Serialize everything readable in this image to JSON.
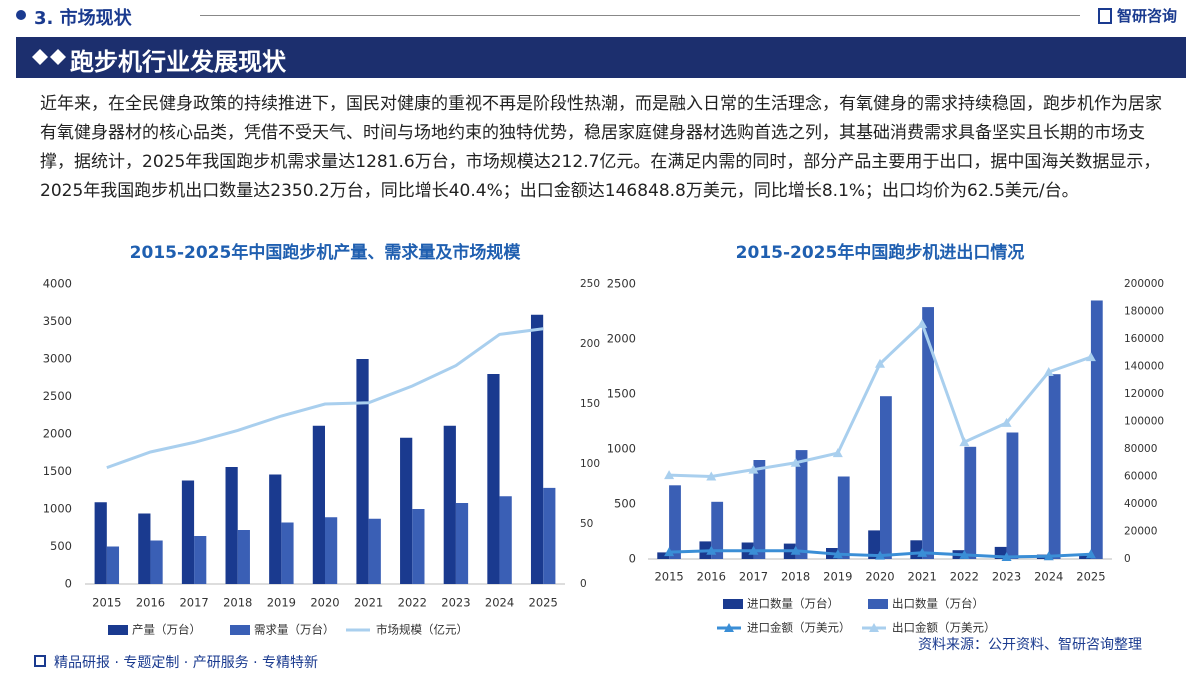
{
  "header": {
    "section": "3. 市场现状",
    "logo": "智研咨询",
    "title": "跑步机行业发展现状"
  },
  "paragraph": "近年来，在全民健身政策的持续推进下，国民对健康的重视不再是阶段性热潮，而是融入日常的生活理念，有氧健身的需求持续稳固，跑步机作为居家有氧健身器材的核心品类，凭借不受天气、时间与场地约束的独特优势，稳居家庭健身器材选购首选之列，其基础消费需求具备坚实且长期的市场支撑，据统计，2025年我国跑步机需求量达1281.6万台，市场规模达212.7亿元。在满足内需的同时，部分产品主要用于出口，据中国海关数据显示，2025年我国跑步机出口数量达2350.2万台，同比增长40.4%；出口金额达146848.8万美元，同比增长8.1%；出口均价为62.5美元/台。",
  "chart_data": [
    {
      "type": "combo",
      "title": "2015-2025年中国跑步机产量、需求量及市场规模",
      "categories": [
        "2015",
        "2016",
        "2017",
        "2018",
        "2019",
        "2020",
        "2021",
        "2022",
        "2023",
        "2024",
        "2025"
      ],
      "series": [
        {
          "name": "产量（万台）",
          "mark": "bar",
          "color": "#1a3a8f",
          "values": [
            1090,
            940,
            1380,
            1560,
            1460,
            2110,
            3000,
            1950,
            2110,
            2800,
            3590
          ]
        },
        {
          "name": "需求量（万台）",
          "mark": "bar",
          "color": "#3a5fb5",
          "values": [
            500,
            580,
            640,
            720,
            820,
            890,
            870,
            1000,
            1080,
            1170,
            1281.6
          ]
        },
        {
          "name": "市场规模（亿元）",
          "mark": "line",
          "axis": "y2",
          "color": "#a9cfee",
          "values": [
            97,
            110,
            118,
            128,
            140,
            150,
            151,
            165,
            182,
            208,
            212.7
          ]
        }
      ],
      "ylim": [
        0,
        4000
      ],
      "yticks": [
        0,
        500,
        1000,
        1500,
        2000,
        2500,
        3000,
        3500,
        4000
      ],
      "y2lim": [
        0,
        250
      ],
      "y2ticks": [
        0,
        50,
        100,
        150,
        200,
        250
      ]
    },
    {
      "type": "combo",
      "title": "2015-2025年中国跑步机进出口情况",
      "categories": [
        "2015",
        "2016",
        "2017",
        "2018",
        "2019",
        "2020",
        "2021",
        "2022",
        "2023",
        "2024",
        "2025"
      ],
      "series": [
        {
          "name": "进口数量（万台）",
          "mark": "bar",
          "color": "#1a3a8f",
          "values": [
            60,
            160,
            150,
            140,
            100,
            260,
            170,
            80,
            110,
            40,
            30
          ]
        },
        {
          "name": "出口数量（万台）",
          "mark": "bar",
          "color": "#3a5fb5",
          "values": [
            670,
            520,
            900,
            990,
            750,
            1480,
            2290,
            1020,
            1150,
            1680,
            2350.2
          ]
        },
        {
          "name": "进口金额（万美元）",
          "mark": "line",
          "marker": "triangle",
          "axis": "y2",
          "color": "#3a8ed6",
          "values": [
            5000,
            6000,
            6000,
            6000,
            3500,
            2500,
            4500,
            3000,
            1500,
            2000,
            3500
          ]
        },
        {
          "name": "出口金额（万美元）",
          "mark": "line",
          "marker": "triangle",
          "axis": "y2",
          "color": "#a9cfee",
          "values": [
            61000,
            60000,
            65000,
            70000,
            77000,
            142000,
            171000,
            85000,
            99000,
            136000,
            146848.8
          ]
        }
      ],
      "ylim": [
        0,
        2500
      ],
      "yticks": [
        0,
        500,
        1000,
        1500,
        2000,
        2500
      ],
      "y2lim": [
        0,
        200000
      ],
      "y2ticks": [
        0,
        20000,
        40000,
        60000,
        80000,
        100000,
        120000,
        140000,
        160000,
        180000,
        200000
      ]
    }
  ],
  "footer": {
    "tagline": "精品研报 · 专题定制 · 产研服务 · 专精特新",
    "source": "资料来源：公开资料、智研咨询整理"
  }
}
